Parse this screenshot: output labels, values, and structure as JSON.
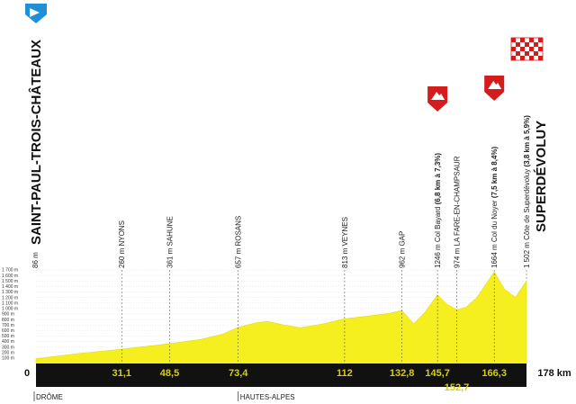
{
  "chart_data": {
    "type": "area",
    "title": "",
    "xlabel": "",
    "ylabel": "",
    "x_unit": "km",
    "xlim": [
      0,
      178
    ],
    "ylim": [
      0,
      1700
    ],
    "y_ticks": [
      {
        "value": 100,
        "label": "100 m"
      },
      {
        "value": 200,
        "label": "200 m"
      },
      {
        "value": 300,
        "label": "300 m"
      },
      {
        "value": 400,
        "label": "400 m"
      },
      {
        "value": 500,
        "label": "500 m"
      },
      {
        "value": 600,
        "label": "600 m"
      },
      {
        "value": 700,
        "label": "700 m"
      },
      {
        "value": 800,
        "label": "800 m"
      },
      {
        "value": 900,
        "label": "900 m"
      },
      {
        "value": 1000,
        "label": "1 000 m"
      },
      {
        "value": 1100,
        "label": "1 100 m"
      },
      {
        "value": 1200,
        "label": "1 200 m"
      },
      {
        "value": 1300,
        "label": "1 300 m"
      },
      {
        "value": 1400,
        "label": "1 400 m"
      },
      {
        "value": 1500,
        "label": "1 500 m"
      },
      {
        "value": 1600,
        "label": "1 600 m"
      },
      {
        "value": 1700,
        "label": "1 700 m"
      }
    ],
    "profile": [
      {
        "km": 0,
        "alt": 86
      },
      {
        "km": 15,
        "alt": 180
      },
      {
        "km": 31.1,
        "alt": 260
      },
      {
        "km": 48.5,
        "alt": 361
      },
      {
        "km": 60,
        "alt": 440
      },
      {
        "km": 68,
        "alt": 540
      },
      {
        "km": 73.4,
        "alt": 657
      },
      {
        "km": 80,
        "alt": 740
      },
      {
        "km": 84,
        "alt": 765
      },
      {
        "km": 90,
        "alt": 700
      },
      {
        "km": 96,
        "alt": 650
      },
      {
        "km": 104,
        "alt": 720
      },
      {
        "km": 112,
        "alt": 813
      },
      {
        "km": 120,
        "alt": 860
      },
      {
        "km": 128,
        "alt": 910
      },
      {
        "km": 132.8,
        "alt": 962
      },
      {
        "km": 137,
        "alt": 720
      },
      {
        "km": 141,
        "alt": 920
      },
      {
        "km": 145.7,
        "alt": 1246
      },
      {
        "km": 149,
        "alt": 1080
      },
      {
        "km": 152.7,
        "alt": 974
      },
      {
        "km": 156,
        "alt": 1020
      },
      {
        "km": 160,
        "alt": 1200
      },
      {
        "km": 166.3,
        "alt": 1664
      },
      {
        "km": 170,
        "alt": 1350
      },
      {
        "km": 174,
        "alt": 1200
      },
      {
        "km": 178,
        "alt": 1502
      }
    ],
    "waypoints": [
      {
        "km": 0,
        "alt_label": "86 m",
        "name": "SAINT-PAUL-TROIS-CHÂTEAUX",
        "climb": "",
        "type": "start"
      },
      {
        "km": 31.1,
        "km_label": "31,1",
        "alt_label": "260 m",
        "name": "NYONS",
        "climb": "",
        "type": "town"
      },
      {
        "km": 48.5,
        "km_label": "48,5",
        "alt_label": "361 m",
        "name": "SAHUNE",
        "climb": "",
        "type": "town"
      },
      {
        "km": 73.4,
        "km_label": "73,4",
        "alt_label": "657 m",
        "name": "ROSANS",
        "climb": "",
        "type": "town"
      },
      {
        "km": 112,
        "km_label": "112",
        "alt_label": "813 m",
        "name": "VEYNES",
        "climb": "",
        "type": "town"
      },
      {
        "km": 132.8,
        "km_label": "132,8",
        "alt_label": "962 m",
        "name": "GAP",
        "climb": "",
        "type": "town"
      },
      {
        "km": 145.7,
        "km_label": "145,7",
        "alt_label": "1246 m",
        "name": "Col Bayard",
        "climb": "(6,8 km à 7,3%)",
        "type": "climb"
      },
      {
        "km": 152.7,
        "km_label": "152,7",
        "alt_label": "974 m",
        "name": "LA FARE-EN-CHAMPSAUR",
        "climb": "",
        "type": "town"
      },
      {
        "km": 166.3,
        "km_label": "166,3",
        "alt_label": "1664 m",
        "name": "Col du Noyer",
        "climb": "(7,5 km à 8,4%)",
        "type": "climb"
      },
      {
        "km": 178,
        "alt_label": "1 502 m",
        "name": "Côte de Superdévoluy",
        "climb": "(3,8 km à 5,9%)",
        "type": "finish-climb"
      }
    ],
    "start_name": "SAINT-PAUL-TROIS-CHÂTEAUX",
    "finish_name": "SUPERDÉVOLUY",
    "km_start_label": "0",
    "km_end_label": "178 km",
    "regions": [
      {
        "km": 0,
        "label": "DRÔME"
      },
      {
        "km": 73.4,
        "label": "HAUTES-ALPES"
      }
    ],
    "colors": {
      "profile_fill": "#f5ef1f",
      "baseline_bar": "#111111",
      "km_text": "#d8d000",
      "flag_start": "#1f8fd6",
      "climb_flag": "#d41c1c",
      "finish_check_dark": "#d41c1c"
    }
  }
}
